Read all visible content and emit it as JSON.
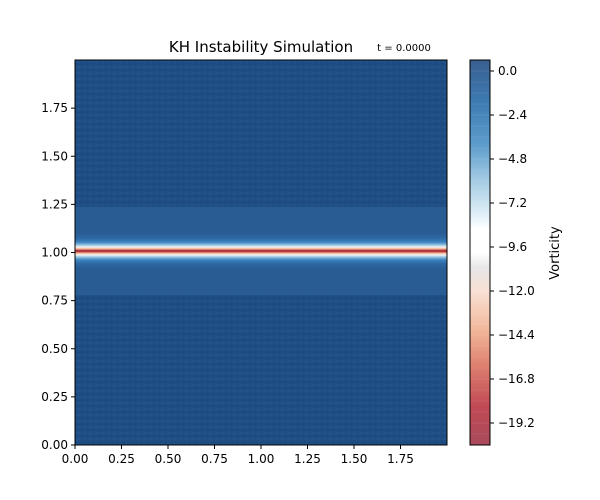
{
  "chart_data": {
    "type": "heatmap",
    "title": "KH Instability Simulation",
    "annotation": "t = 0.0000",
    "xlabel": "",
    "ylabel": "",
    "xlim": [
      0,
      2
    ],
    "ylim": [
      0,
      2
    ],
    "x_ticks": [
      "0.00",
      "0.25",
      "0.50",
      "0.75",
      "1.00",
      "1.25",
      "1.50",
      "1.75"
    ],
    "y_ticks": [
      "0.00",
      "0.25",
      "0.50",
      "0.75",
      "1.00",
      "1.25",
      "1.50",
      "1.75"
    ],
    "x_tick_values": [
      0,
      0.25,
      0.5,
      0.75,
      1.0,
      1.25,
      1.5,
      1.75
    ],
    "y_tick_values": [
      0,
      0.25,
      0.5,
      0.75,
      1.0,
      1.25,
      1.5,
      1.75
    ],
    "colorbar": {
      "label": "Vorticity",
      "range": [
        -20.4,
        0.6
      ],
      "ticks": [
        "0.0",
        "−2.4",
        "−4.8",
        "−7.2",
        "−9.6",
        "−12.0",
        "−14.4",
        "−16.8",
        "−19.2"
      ],
      "tick_values": [
        0.0,
        -2.4,
        -4.8,
        -7.2,
        -9.6,
        -12.0,
        -14.4,
        -16.8,
        -19.2
      ],
      "colormap": "RdBu"
    },
    "field_profile": {
      "description_y": [
        0.0,
        0.78,
        0.8,
        0.88,
        0.93,
        0.96,
        0.98,
        1.0,
        1.02,
        1.04,
        1.07,
        1.12,
        1.2,
        1.22,
        2.0
      ],
      "vorticity": [
        0.0,
        0.0,
        -0.6,
        -1.0,
        -3.5,
        -9.6,
        -15.0,
        -19.8,
        -15.0,
        -9.6,
        -3.5,
        -1.0,
        -0.6,
        0.0,
        0.0
      ]
    },
    "grid": false,
    "colors": {
      "background_blue": "#1f4e85",
      "band_blue": "#2a5c94",
      "core_red": "#8e1b2c",
      "white": "#f7f7f7"
    }
  }
}
